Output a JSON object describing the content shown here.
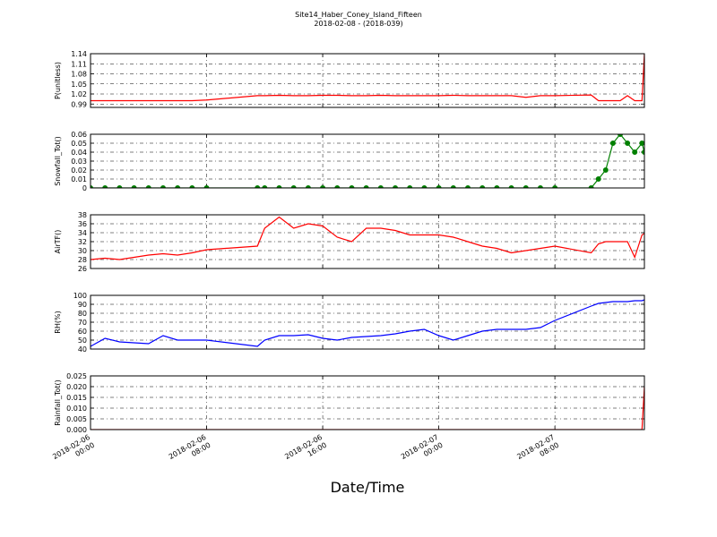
{
  "figure": {
    "title": "Site14_Haber_Coney_Island_Fifteen",
    "subtitle": "2018-02-08 - (2018-039)",
    "xlabel": "Date/Time",
    "xlim": [
      "2018-02-06 00:00",
      "2018-02-07 14:10"
    ],
    "xticks": [
      "2018-02-06 00:00",
      "2018-02-06 08:00",
      "2018-02-06 16:00",
      "2018-02-07 00:00",
      "2018-02-07 08:00"
    ],
    "grid": true,
    "x": [
      "2018-02-06 00:00",
      "2018-02-06 01:00",
      "2018-02-06 02:00",
      "2018-02-06 03:00",
      "2018-02-06 04:00",
      "2018-02-06 05:00",
      "2018-02-06 06:00",
      "2018-02-06 07:00",
      "2018-02-06 08:00",
      "2018-02-06 11:30",
      "2018-02-06 12:00",
      "2018-02-06 13:00",
      "2018-02-06 14:00",
      "2018-02-06 15:00",
      "2018-02-06 16:00",
      "2018-02-06 17:00",
      "2018-02-06 18:00",
      "2018-02-06 19:00",
      "2018-02-06 20:00",
      "2018-02-06 21:00",
      "2018-02-06 22:00",
      "2018-02-06 23:00",
      "2018-02-07 00:00",
      "2018-02-07 01:00",
      "2018-02-07 02:00",
      "2018-02-07 03:00",
      "2018-02-07 04:00",
      "2018-02-07 05:00",
      "2018-02-07 06:00",
      "2018-02-07 07:00",
      "2018-02-07 08:00",
      "2018-02-07 10:30",
      "2018-02-07 11:00",
      "2018-02-07 11:30",
      "2018-02-07 12:00",
      "2018-02-07 12:30",
      "2018-02-07 13:00",
      "2018-02-07 13:30",
      "2018-02-07 14:00",
      "2018-02-07 14:10"
    ]
  },
  "chart_data": [
    {
      "type": "line",
      "ylabel": "P(unitless)",
      "ylim": [
        0.98,
        1.14
      ],
      "yticks": [
        0.99,
        1.02,
        1.05,
        1.08,
        1.11,
        1.14
      ],
      "series": [
        {
          "color": "#ff0000",
          "values": [
            1.0,
            1.0,
            1.0,
            1.0,
            1.0,
            1.0,
            1.0,
            1.0,
            1.002,
            1.015,
            1.015,
            1.016,
            1.015,
            1.015,
            1.016,
            1.016,
            1.015,
            1.015,
            1.016,
            1.015,
            1.015,
            1.015,
            1.015,
            1.016,
            1.015,
            1.015,
            1.015,
            1.015,
            1.01,
            1.015,
            1.015,
            1.017,
            1.0,
            1.0,
            1.0,
            1.0,
            1.015,
            1.0,
            1.0,
            1.14
          ]
        }
      ]
    },
    {
      "type": "line",
      "ylabel": "Snowfall_Tot()",
      "ylim": [
        0,
        0.06
      ],
      "yticks": [
        0.0,
        0.01,
        0.02,
        0.03,
        0.04,
        0.05,
        0.06
      ],
      "series": [
        {
          "color": "#008000",
          "marker": "o",
          "values": [
            0,
            0,
            0,
            0,
            0,
            0,
            0,
            0,
            0,
            0,
            0,
            0,
            0,
            0,
            0,
            0,
            0,
            0,
            0,
            0,
            0,
            0,
            0,
            0,
            0,
            0,
            0,
            0,
            0,
            0,
            0,
            0,
            0.01,
            0.02,
            0.05,
            0.06,
            0.05,
            0.04,
            0.05,
            0.04
          ]
        }
      ]
    },
    {
      "type": "line",
      "ylabel": "AirTF()",
      "ylim": [
        26,
        38
      ],
      "yticks": [
        26,
        28,
        30,
        32,
        34,
        36,
        38
      ],
      "series": [
        {
          "color": "#ff0000",
          "values": [
            28,
            28.3,
            28,
            28.5,
            29,
            29.3,
            29,
            29.5,
            30.2,
            31,
            35,
            37.5,
            35,
            36,
            35.5,
            33,
            32,
            35,
            35,
            34.5,
            33.5,
            33.5,
            33.5,
            33,
            32,
            31,
            30.5,
            29.5,
            30,
            30.5,
            31,
            29.5,
            31.5,
            32,
            32,
            32,
            32,
            28.5,
            33.5,
            33.8
          ]
        }
      ]
    },
    {
      "type": "line",
      "ylabel": "RH(%)",
      "ylim": [
        40,
        100
      ],
      "yticks": [
        40,
        50,
        60,
        70,
        80,
        90,
        100
      ],
      "series": [
        {
          "color": "#0000ff",
          "values": [
            43,
            52,
            48,
            47,
            46,
            55,
            50,
            50,
            50,
            43,
            50,
            55,
            55,
            56,
            52,
            50,
            53,
            54,
            55,
            57,
            60,
            62,
            55,
            50,
            55,
            60,
            62,
            62,
            62,
            64,
            72,
            88,
            91,
            92,
            93,
            93,
            93,
            94,
            94,
            95
          ]
        }
      ]
    },
    {
      "type": "line",
      "ylabel": "Rainfall_Tot()",
      "ylim": [
        0,
        0.025
      ],
      "yticks": [
        {
          "value": 0,
          "label": "0.000"
        },
        {
          "value": 0.005,
          "label": "0.005"
        },
        {
          "value": 0.01,
          "label": "0.010"
        },
        {
          "value": 0.015,
          "label": "0.015"
        },
        {
          "value": 0.02,
          "label": "0.020"
        },
        {
          "value": 0.025,
          "label": "0.025"
        }
      ],
      "series": [
        {
          "color": "#ff0000",
          "values": [
            0,
            0,
            0,
            0,
            0,
            0,
            0,
            0,
            0,
            0,
            0,
            0,
            0,
            0,
            0,
            0,
            0,
            0,
            0,
            0,
            0,
            0,
            0,
            0,
            0,
            0,
            0,
            0,
            0,
            0,
            0,
            0,
            0,
            0,
            0,
            0,
            0,
            0,
            0,
            0.02
          ]
        }
      ]
    }
  ]
}
